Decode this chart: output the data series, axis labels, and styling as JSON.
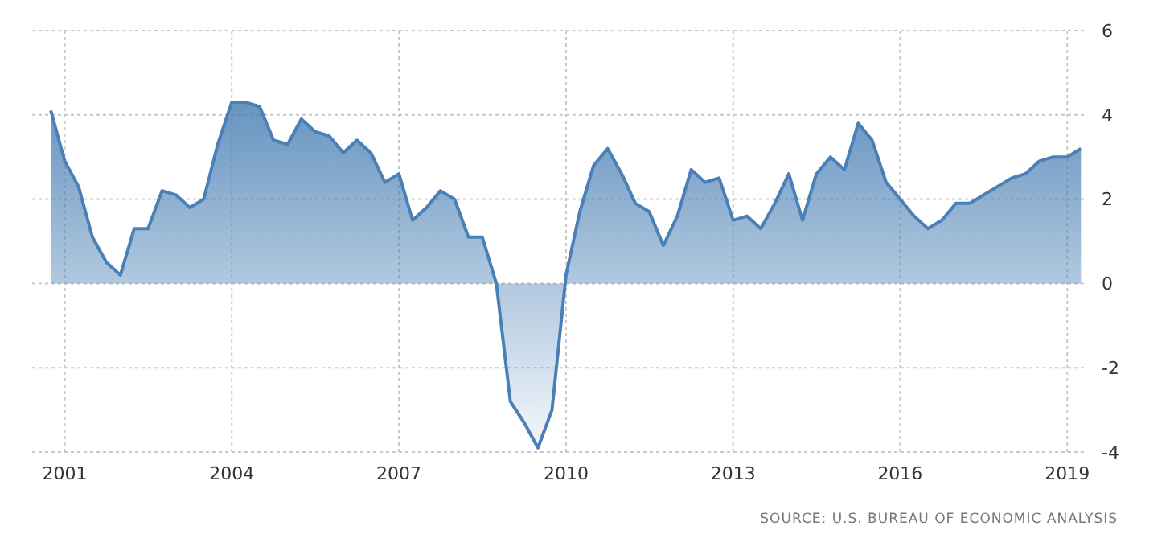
{
  "chart_data": {
    "type": "area",
    "x": [
      "2000-10",
      "2001-01",
      "2001-04",
      "2001-07",
      "2001-10",
      "2002-01",
      "2002-04",
      "2002-07",
      "2002-10",
      "2003-01",
      "2003-04",
      "2003-07",
      "2003-10",
      "2004-01",
      "2004-04",
      "2004-07",
      "2004-10",
      "2005-01",
      "2005-04",
      "2005-07",
      "2005-10",
      "2006-01",
      "2006-04",
      "2006-07",
      "2006-10",
      "2007-01",
      "2007-04",
      "2007-07",
      "2007-10",
      "2008-01",
      "2008-04",
      "2008-07",
      "2008-10",
      "2009-01",
      "2009-04",
      "2009-07",
      "2009-10",
      "2010-01",
      "2010-04",
      "2010-07",
      "2010-10",
      "2011-01",
      "2011-04",
      "2011-07",
      "2011-10",
      "2012-01",
      "2012-04",
      "2012-07",
      "2012-10",
      "2013-01",
      "2013-04",
      "2013-07",
      "2013-10",
      "2014-01",
      "2014-04",
      "2014-07",
      "2014-10",
      "2015-01",
      "2015-04",
      "2015-07",
      "2015-10",
      "2016-01",
      "2016-04",
      "2016-07",
      "2016-10",
      "2017-01",
      "2017-04",
      "2017-07",
      "2017-10",
      "2018-01",
      "2018-04",
      "2018-07",
      "2018-10",
      "2019-01",
      "2019-04"
    ],
    "series": [
      {
        "color": "#4a80b5",
        "values": [
          4.1,
          2.9,
          2.3,
          1.1,
          0.5,
          0.2,
          1.3,
          1.3,
          2.2,
          2.1,
          1.8,
          2.0,
          3.3,
          4.3,
          4.3,
          4.2,
          3.4,
          3.3,
          3.9,
          3.6,
          3.5,
          3.1,
          3.4,
          3.1,
          2.4,
          2.6,
          1.5,
          1.8,
          2.2,
          2.0,
          1.1,
          1.1,
          0.0,
          -2.8,
          -3.3,
          -3.9,
          -3.0,
          0.2,
          1.7,
          2.8,
          3.2,
          2.6,
          1.9,
          1.7,
          0.9,
          1.6,
          2.7,
          2.4,
          2.5,
          1.5,
          1.6,
          1.3,
          1.9,
          2.6,
          1.5,
          2.6,
          3.0,
          2.7,
          3.8,
          3.4,
          2.4,
          2.0,
          1.6,
          1.3,
          1.5,
          1.9,
          1.9,
          2.1,
          2.3,
          2.5,
          2.6,
          2.9,
          3.0,
          3.0,
          3.2
        ]
      }
    ],
    "xlim": [
      "2000-06",
      "2019-05"
    ],
    "xticks": [
      "2001",
      "2004",
      "2007",
      "2010",
      "2013",
      "2016",
      "2019"
    ],
    "ylim": [
      -4,
      6
    ],
    "yticks": [
      -4,
      -2,
      0,
      2,
      4,
      6
    ],
    "grid": true,
    "annotations": [
      "SOURCE: U.S. BUREAU OF ECONOMIC ANALYSIS"
    ]
  }
}
